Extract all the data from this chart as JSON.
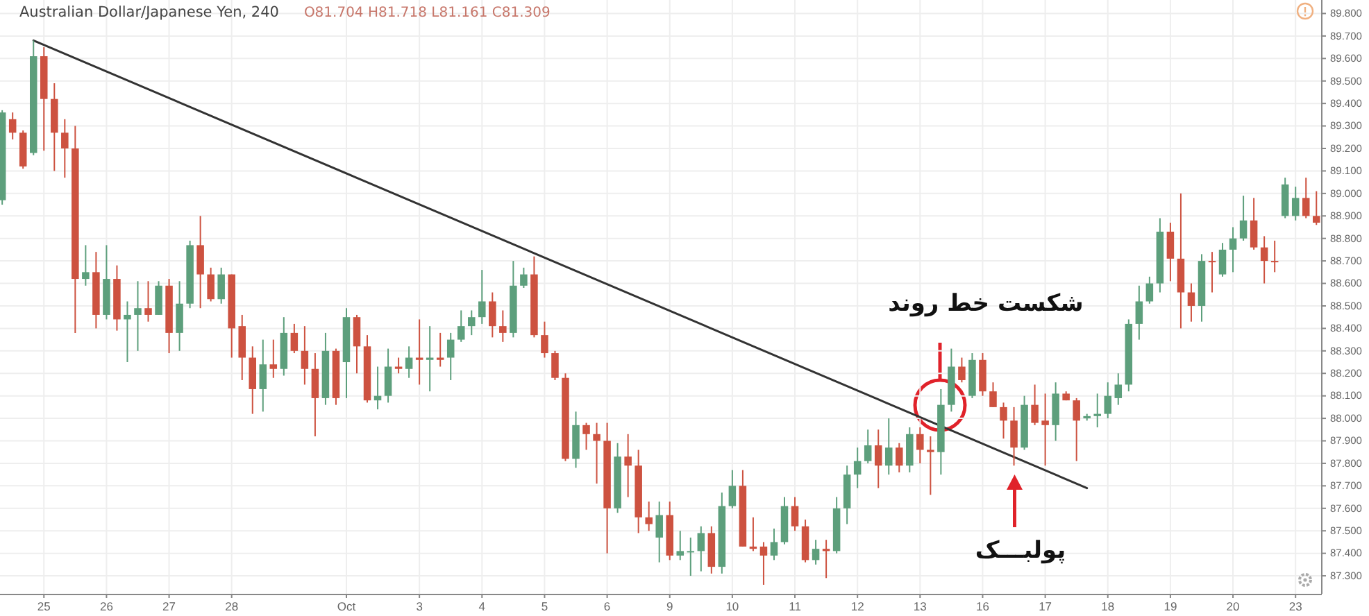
{
  "chart_data": {
    "type": "candlestick",
    "title": "Australian Dollar/Japanese Yen, 240",
    "subtitle": "O81.704  H81.718  L81.161  C81.309",
    "categories": [
      null,
      null,
      null,
      null,
      "25",
      null,
      null,
      null,
      null,
      null,
      "26",
      null,
      null,
      null,
      null,
      null,
      "27",
      null,
      null,
      null,
      null,
      null,
      "28",
      null,
      null,
      null,
      null,
      null,
      null,
      null,
      null,
      null,
      null,
      "Oct",
      null,
      null,
      null,
      null,
      null,
      null,
      "3",
      null,
      null,
      null,
      null,
      null,
      "4",
      null,
      null,
      null,
      null,
      null,
      "5",
      null,
      null,
      null,
      null,
      null,
      "6",
      null,
      null,
      null,
      null,
      null,
      "9",
      null,
      null,
      null,
      null,
      null,
      "10",
      null,
      null,
      null,
      null,
      null,
      "11",
      null,
      null,
      null,
      null,
      null,
      "12",
      null,
      null,
      null,
      null,
      null,
      "13",
      null,
      null,
      null,
      null,
      null,
      "16",
      null,
      null,
      null,
      null,
      null,
      "17",
      null,
      null,
      null,
      null,
      null,
      "18",
      null,
      null,
      null,
      null,
      null,
      "19",
      null,
      null,
      null,
      null,
      null,
      "20",
      null,
      null,
      null,
      null,
      null,
      "23",
      null,
      null
    ],
    "ohlc": [
      [
        88.97,
        89.37,
        88.95,
        89.36
      ],
      [
        89.33,
        89.36,
        89.24,
        89.27
      ],
      [
        89.27,
        89.28,
        89.11,
        89.12
      ],
      [
        89.18,
        89.68,
        89.17,
        89.61
      ],
      [
        89.61,
        89.65,
        89.19,
        89.42
      ],
      [
        89.42,
        89.49,
        89.1,
        89.27
      ],
      [
        89.27,
        89.33,
        89.07,
        89.2
      ],
      [
        89.2,
        89.3,
        88.38,
        88.62
      ],
      [
        88.62,
        88.77,
        88.59,
        88.65
      ],
      [
        88.65,
        88.74,
        88.4,
        88.46
      ],
      [
        88.46,
        88.77,
        88.44,
        88.62
      ],
      [
        88.62,
        88.68,
        88.39,
        88.44
      ],
      [
        88.44,
        88.52,
        88.25,
        88.46
      ],
      [
        88.46,
        88.61,
        88.3,
        88.49
      ],
      [
        88.49,
        88.61,
        88.43,
        88.46
      ],
      [
        88.46,
        88.61,
        88.46,
        88.59
      ],
      [
        88.59,
        88.62,
        88.29,
        88.38
      ],
      [
        88.38,
        88.61,
        88.3,
        88.51
      ],
      [
        88.51,
        88.79,
        88.49,
        88.77
      ],
      [
        88.77,
        88.9,
        88.49,
        88.64
      ],
      [
        88.64,
        88.67,
        88.52,
        88.53
      ],
      [
        88.53,
        88.67,
        88.51,
        88.64
      ],
      [
        88.64,
        88.64,
        88.27,
        88.4
      ],
      [
        88.41,
        88.46,
        88.17,
        88.27
      ],
      [
        88.27,
        88.32,
        88.02,
        88.13
      ],
      [
        88.13,
        88.35,
        88.03,
        88.24
      ],
      [
        88.24,
        88.35,
        88.18,
        88.22
      ],
      [
        88.22,
        88.45,
        88.19,
        88.38
      ],
      [
        88.38,
        88.42,
        88.29,
        88.3
      ],
      [
        88.3,
        88.41,
        88.15,
        88.22
      ],
      [
        88.22,
        88.29,
        87.92,
        88.09
      ],
      [
        88.09,
        88.38,
        88.06,
        88.3
      ],
      [
        88.3,
        88.31,
        88.06,
        88.09
      ],
      [
        88.25,
        88.49,
        88.09,
        88.45
      ],
      [
        88.45,
        88.46,
        88.2,
        88.32
      ],
      [
        88.32,
        88.37,
        88.07,
        88.08
      ],
      [
        88.08,
        88.23,
        88.04,
        88.1
      ],
      [
        88.1,
        88.31,
        88.07,
        88.23
      ],
      [
        88.23,
        88.27,
        88.2,
        88.22
      ],
      [
        88.22,
        88.32,
        88.18,
        88.27
      ],
      [
        88.27,
        88.44,
        88.15,
        88.26
      ],
      [
        88.26,
        88.41,
        88.12,
        88.27
      ],
      [
        88.27,
        88.38,
        88.23,
        88.26
      ],
      [
        88.27,
        88.38,
        88.17,
        88.35
      ],
      [
        88.35,
        88.48,
        88.34,
        88.41
      ],
      [
        88.41,
        88.48,
        88.37,
        88.45
      ],
      [
        88.45,
        88.66,
        88.42,
        88.52
      ],
      [
        88.52,
        88.56,
        88.36,
        88.41
      ],
      [
        88.41,
        88.48,
        88.34,
        88.38
      ],
      [
        88.38,
        88.7,
        88.36,
        88.59
      ],
      [
        88.59,
        88.67,
        88.58,
        88.64
      ],
      [
        88.64,
        88.72,
        88.36,
        88.37
      ],
      [
        88.37,
        88.43,
        88.27,
        88.29
      ],
      [
        88.29,
        88.3,
        88.17,
        88.18
      ],
      [
        88.18,
        88.2,
        87.81,
        87.82
      ],
      [
        87.82,
        88.03,
        87.78,
        87.97
      ],
      [
        87.97,
        87.98,
        87.86,
        87.93
      ],
      [
        87.93,
        87.98,
        87.71,
        87.9
      ],
      [
        87.9,
        87.98,
        87.4,
        87.6
      ],
      [
        87.6,
        87.89,
        87.58,
        87.83
      ],
      [
        87.83,
        87.93,
        87.65,
        87.79
      ],
      [
        87.79,
        87.86,
        87.49,
        87.56
      ],
      [
        87.56,
        87.63,
        87.5,
        87.53
      ],
      [
        87.47,
        87.63,
        87.36,
        87.57
      ],
      [
        87.57,
        87.63,
        87.37,
        87.39
      ],
      [
        87.39,
        87.5,
        87.37,
        87.41
      ],
      [
        87.41,
        87.47,
        87.3,
        87.41
      ],
      [
        87.41,
        87.52,
        87.32,
        87.49
      ],
      [
        87.49,
        87.52,
        87.31,
        87.34
      ],
      [
        87.34,
        87.67,
        87.31,
        87.61
      ],
      [
        87.61,
        87.77,
        87.6,
        87.7
      ],
      [
        87.7,
        87.77,
        87.43,
        87.43
      ],
      [
        87.43,
        87.56,
        87.41,
        87.42
      ],
      [
        87.43,
        87.45,
        87.26,
        87.39
      ],
      [
        87.39,
        87.51,
        87.37,
        87.45
      ],
      [
        87.45,
        87.65,
        87.44,
        87.61
      ],
      [
        87.61,
        87.65,
        87.5,
        87.52
      ],
      [
        87.52,
        87.55,
        87.36,
        87.37
      ],
      [
        87.37,
        87.46,
        87.35,
        87.42
      ],
      [
        87.42,
        87.46,
        87.29,
        87.41
      ],
      [
        87.41,
        87.65,
        87.4,
        87.6
      ],
      [
        87.6,
        87.79,
        87.53,
        87.75
      ],
      [
        87.75,
        87.87,
        87.69,
        87.81
      ],
      [
        87.81,
        87.95,
        87.8,
        87.88
      ],
      [
        87.88,
        87.95,
        87.69,
        87.79
      ],
      [
        87.79,
        88.0,
        87.75,
        87.87
      ],
      [
        87.87,
        87.89,
        87.76,
        87.79
      ],
      [
        87.79,
        87.96,
        87.76,
        87.93
      ],
      [
        87.93,
        87.96,
        87.8,
        87.86
      ],
      [
        87.86,
        87.92,
        87.66,
        87.85
      ],
      [
        87.85,
        88.13,
        87.75,
        88.06
      ],
      [
        88.06,
        88.31,
        88.03,
        88.23
      ],
      [
        88.23,
        88.27,
        88.16,
        88.17
      ],
      [
        88.1,
        88.29,
        88.09,
        88.26
      ],
      [
        88.26,
        88.29,
        88.1,
        88.12
      ],
      [
        88.12,
        88.16,
        88.05,
        88.05
      ],
      [
        88.05,
        88.07,
        87.91,
        87.99
      ],
      [
        87.99,
        88.05,
        87.79,
        87.87
      ],
      [
        87.87,
        88.1,
        87.86,
        88.06
      ],
      [
        88.06,
        88.15,
        87.97,
        87.98
      ],
      [
        87.99,
        88.11,
        87.79,
        87.97
      ],
      [
        87.97,
        88.16,
        87.9,
        88.11
      ],
      [
        88.11,
        88.12,
        88.08,
        88.08
      ],
      [
        88.08,
        88.09,
        87.81,
        87.99
      ],
      [
        88.0,
        88.02,
        87.99,
        88.01
      ],
      [
        88.01,
        88.11,
        87.96,
        88.02
      ],
      [
        88.02,
        88.16,
        88.0,
        88.1
      ],
      [
        88.09,
        88.2,
        88.06,
        88.15
      ],
      [
        88.15,
        88.44,
        88.12,
        88.42
      ],
      [
        88.42,
        88.59,
        88.35,
        88.52
      ],
      [
        88.52,
        88.63,
        88.51,
        88.6
      ],
      [
        88.6,
        88.89,
        88.56,
        88.83
      ],
      [
        88.83,
        88.87,
        88.61,
        88.71
      ],
      [
        88.71,
        89.0,
        88.4,
        88.56
      ],
      [
        88.56,
        88.6,
        88.43,
        88.5
      ],
      [
        88.5,
        88.73,
        88.43,
        88.7
      ],
      [
        88.7,
        88.74,
        88.56,
        88.7
      ],
      [
        88.64,
        88.78,
        88.63,
        88.75
      ],
      [
        88.75,
        88.85,
        88.65,
        88.8
      ],
      [
        88.8,
        88.99,
        88.79,
        88.88
      ],
      [
        88.88,
        88.98,
        88.75,
        88.76
      ],
      [
        88.76,
        88.81,
        88.6,
        88.7
      ],
      [
        88.7,
        88.79,
        88.65,
        88.7
      ],
      [
        88.9,
        89.07,
        88.89,
        89.04
      ],
      [
        88.9,
        89.03,
        88.88,
        88.98
      ],
      [
        88.98,
        89.07,
        88.89,
        88.9
      ],
      [
        88.9,
        89.01,
        88.86,
        88.87
      ]
    ],
    "colors": [
      "#5d9f7c",
      "#cd5240",
      "#cd5240",
      "#5d9f7c",
      "#cd5240",
      "#cd5240",
      "#cd5240",
      "#cd5240",
      "#5d9f7c",
      "#cd5240",
      "#5d9f7c",
      "#cd5240",
      "#5d9f7c",
      "#5d9f7c",
      "#cd5240",
      "#5d9f7c",
      "#cd5240",
      "#5d9f7c",
      "#5d9f7c",
      "#cd5240",
      "#cd5240",
      "#5d9f7c",
      "#cd5240",
      "#cd5240",
      "#cd5240",
      "#5d9f7c",
      "#cd5240",
      "#5d9f7c",
      "#cd5240",
      "#cd5240",
      "#cd5240",
      "#5d9f7c",
      "#cd5240",
      "#5d9f7c",
      "#cd5240",
      "#cd5240",
      "#5d9f7c",
      "#5d9f7c",
      "#cd5240",
      "#5d9f7c",
      "#cd5240",
      "#5d9f7c",
      "#cd5240",
      "#5d9f7c",
      "#5d9f7c",
      "#5d9f7c",
      "#5d9f7c",
      "#cd5240",
      "#cd5240",
      "#5d9f7c",
      "#5d9f7c",
      "#cd5240",
      "#cd5240",
      "#cd5240",
      "#cd5240",
      "#5d9f7c",
      "#cd5240",
      "#cd5240",
      "#cd5240",
      "#5d9f7c",
      "#cd5240",
      "#cd5240",
      "#cd5240",
      "#5d9f7c",
      "#cd5240",
      "#5d9f7c",
      "#5d9f7c",
      "#5d9f7c",
      "#cd5240",
      "#5d9f7c",
      "#5d9f7c",
      "#cd5240",
      "#cd5240",
      "#cd5240",
      "#5d9f7c",
      "#5d9f7c",
      "#cd5240",
      "#cd5240",
      "#5d9f7c",
      "#cd5240",
      "#5d9f7c",
      "#5d9f7c",
      "#5d9f7c",
      "#5d9f7c",
      "#cd5240",
      "#5d9f7c",
      "#cd5240",
      "#5d9f7c",
      "#cd5240",
      "#cd5240",
      "#5d9f7c",
      "#5d9f7c",
      "#cd5240",
      "#5d9f7c",
      "#cd5240",
      "#cd5240",
      "#cd5240",
      "#cd5240",
      "#5d9f7c",
      "#cd5240",
      "#cd5240",
      "#5d9f7c",
      "#cd5240",
      "#cd5240",
      "#5d9f7c",
      "#5d9f7c",
      "#5d9f7c",
      "#5d9f7c",
      "#5d9f7c",
      "#5d9f7c",
      "#5d9f7c",
      "#5d9f7c",
      "#cd5240",
      "#cd5240",
      "#cd5240",
      "#5d9f7c",
      "#cd5240",
      "#5d9f7c",
      "#5d9f7c",
      "#5d9f7c",
      "#cd5240",
      "#cd5240",
      "#cd5240",
      "#5d9f7c",
      "#5d9f7c",
      "#cd5240",
      "#cd5240"
    ],
    "series": [
      {
        "type": "line",
        "color": "#333333",
        "values": [
          null,
          null,
          null,
          89.68,
          null,
          null,
          null,
          null,
          null,
          null,
          null,
          null,
          null,
          null,
          null,
          null,
          null,
          null,
          null,
          null,
          null,
          null,
          null,
          null,
          null,
          null,
          null,
          null,
          null,
          null,
          null,
          null,
          null,
          null,
          null,
          null,
          null,
          null,
          null,
          null,
          null,
          null,
          null,
          null,
          null,
          null,
          null,
          null,
          null,
          null,
          null,
          null,
          null,
          null,
          null,
          null,
          null,
          null,
          null,
          null,
          null,
          null,
          null,
          null,
          null,
          null,
          null,
          null,
          null,
          null,
          null,
          null,
          null,
          null,
          null,
          null,
          null,
          null,
          null,
          null,
          null,
          null,
          null,
          null,
          null,
          null,
          null,
          null,
          null,
          null,
          null,
          null,
          null,
          null,
          null,
          null,
          null,
          null,
          null,
          null,
          null,
          null,
          null,
          null,
          87.69,
          null,
          null,
          null,
          null,
          null,
          null,
          null,
          null,
          null,
          null,
          null,
          null,
          null,
          null,
          null,
          null,
          null,
          null,
          null,
          null,
          null,
          null
        ]
      }
    ],
    "ylim": [
      87.22,
      89.86
    ],
    "yticks": [
      {
        "value": 89.8,
        "label": "89.800"
      },
      {
        "value": 89.7,
        "label": "89.700"
      },
      {
        "value": 89.6,
        "label": "89.600"
      },
      {
        "value": 89.5,
        "label": "89.500"
      },
      {
        "value": 89.4,
        "label": "89.400"
      },
      {
        "value": 89.3,
        "label": "89.300"
      },
      {
        "value": 89.2,
        "label": "89.200"
      },
      {
        "value": 89.1,
        "label": "89.100"
      },
      {
        "value": 89.0,
        "label": "89.000"
      },
      {
        "value": 88.9,
        "label": "88.900"
      },
      {
        "value": 88.8,
        "label": "88.800"
      },
      {
        "value": 88.7,
        "label": "88.700"
      },
      {
        "value": 88.6,
        "label": "88.600"
      },
      {
        "value": 88.5,
        "label": "88.500"
      },
      {
        "value": 88.4,
        "label": "88.400"
      },
      {
        "value": 88.3,
        "label": "88.300"
      },
      {
        "value": 88.2,
        "label": "88.200"
      },
      {
        "value": 88.1,
        "label": "88.100"
      },
      {
        "value": 88.0,
        "label": "88.000"
      },
      {
        "value": 87.9,
        "label": "87.900"
      },
      {
        "value": 87.8,
        "label": "87.800"
      },
      {
        "value": 87.7,
        "label": "87.700"
      },
      {
        "value": 87.6,
        "label": "87.600"
      },
      {
        "value": 87.5,
        "label": "87.500"
      },
      {
        "value": 87.4,
        "label": "87.400"
      },
      {
        "value": 87.3,
        "label": "87.300"
      }
    ],
    "grid": true,
    "annotations": [
      "شکست خط روند",
      "پولبـــک"
    ]
  }
}
